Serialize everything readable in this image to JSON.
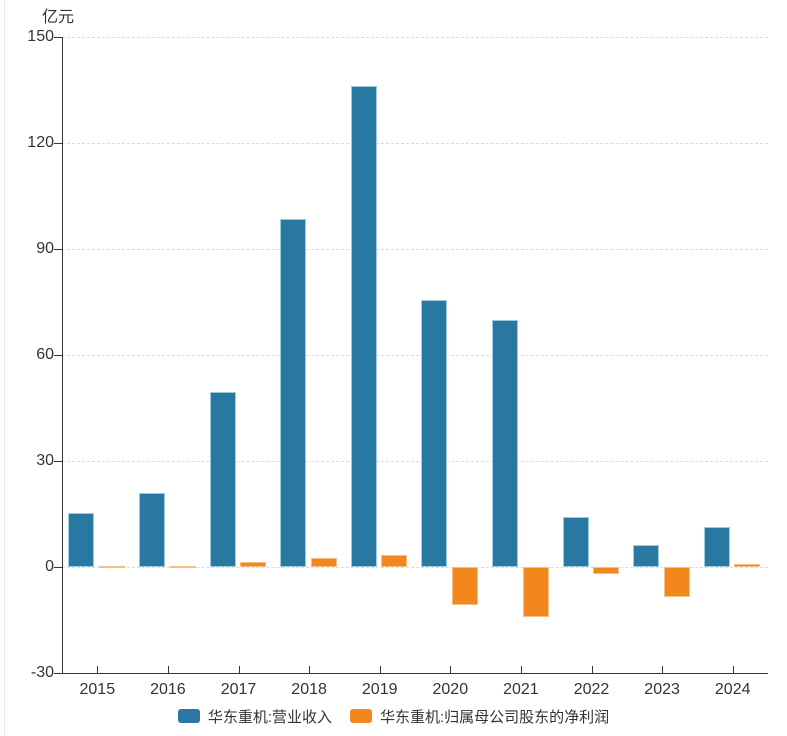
{
  "unit_label": "亿元",
  "chart_data": {
    "type": "bar",
    "title": "",
    "unit": "亿元",
    "xlabel": "",
    "ylabel": "亿元",
    "categories": [
      "2015",
      "2016",
      "2017",
      "2018",
      "2019",
      "2020",
      "2021",
      "2022",
      "2023",
      "2024"
    ],
    "series": [
      {
        "name": "华东重机:营业收入",
        "key": "revenue",
        "color": "#2878a2",
        "border_color": "#9ecbdf",
        "values": [
          15.3,
          21.0,
          49.5,
          98.6,
          136.0,
          75.6,
          70.0,
          14.2,
          6.2,
          11.3
        ]
      },
      {
        "name": "华东重机:归属母公司股东的净利润",
        "key": "net-profit",
        "color": "#f2881d",
        "border_color": "#f6bd85",
        "values": [
          0.3,
          0.3,
          1.3,
          2.6,
          3.4,
          -10.8,
          -14.2,
          -2.1,
          -8.5,
          0.9
        ]
      }
    ],
    "ylim": [
      -30,
      150
    ],
    "yticks": [
      150,
      120,
      90,
      60,
      30,
      0,
      -30
    ],
    "grid": "dashed-horizontal",
    "legend_position": "bottom"
  }
}
